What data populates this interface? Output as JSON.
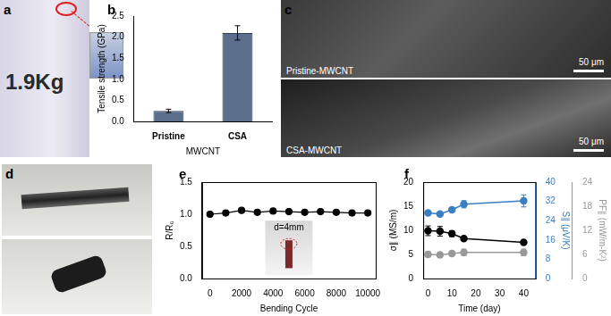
{
  "chart_data": [
    {
      "title": "b",
      "type": "bar",
      "categories": [
        "Pristine",
        "CSA"
      ],
      "values": [
        0.25,
        2.1
      ],
      "errors": [
        0.04,
        0.17
      ],
      "color": "#5b6e8c",
      "x_label": "MWCNT",
      "y_label": "Tensile strength (GPa)",
      "ylim": [
        0,
        2.5
      ],
      "yticks": [
        {
          "value": 0,
          "label": "0.0"
        },
        0.5,
        {
          "value": 1,
          "label": "1.0"
        },
        1.5,
        {
          "value": 2,
          "label": "2.0"
        },
        2.5
      ],
      "grid": false
    },
    {
      "title": "e",
      "type": "line",
      "x": [
        0,
        1000,
        2000,
        3000,
        4000,
        5000,
        6000,
        7000,
        8000,
        9000,
        10000
      ],
      "values": [
        1.0,
        1.02,
        1.06,
        1.03,
        1.05,
        1.04,
        1.03,
        1.04,
        1.03,
        1.02,
        1.02
      ],
      "color": "#000000",
      "marker": "circle",
      "x_label": "Bending Cycle",
      "y_label": "R/R₀",
      "xlim": [
        -500,
        10500
      ],
      "xticks": [
        0,
        2000,
        4000,
        6000,
        8000,
        10000
      ],
      "ylim": [
        0,
        1.5
      ],
      "yticks": [
        {
          "value": 0,
          "label": "0.0"
        },
        0.5,
        {
          "value": 1,
          "label": "1.0"
        },
        1.5
      ],
      "annotations": [
        "d=4mm"
      ],
      "grid": false
    },
    {
      "title": "f",
      "type": "line",
      "x": [
        0,
        5,
        10,
        15,
        40
      ],
      "series": [
        {
          "color": "#000000",
          "marker": "circle",
          "values": [
            9.9,
            9.8,
            9.3,
            8.3,
            7.5
          ],
          "errors": [
            1.0,
            1.0,
            0.6,
            0.3,
            0.3
          ]
        },
        {
          "color": "#3a7fc0",
          "marker": "circle",
          "axis": "y2",
          "values": [
            27.2,
            26.8,
            28.5,
            30.8,
            32.2
          ],
          "errors": [
            0.4,
            0.6,
            0.8,
            1.5,
            2.5
          ]
        },
        {
          "color": "#999999",
          "marker": "circle",
          "axis": "y3",
          "values": [
            6.0,
            5.9,
            6.2,
            6.5,
            6.5
          ],
          "errors": [
            0.6,
            0.6,
            0.6,
            0.8,
            0.8
          ]
        }
      ],
      "x_label": "Time (day)",
      "y_label": "σ∥ (MS/m)",
      "y2_label": "S∥ (μV/K)",
      "y3_label": "PF∥ (mW/m-K²)",
      "xlim": [
        -2,
        45
      ],
      "xticks": [
        0,
        10,
        20,
        30,
        40
      ],
      "ylim": [
        0,
        20
      ],
      "yticks": [
        0,
        5,
        10,
        15,
        20
      ],
      "y2lim": [
        0,
        40
      ],
      "y2ticks": [
        0,
        8,
        16,
        24,
        32,
        40
      ],
      "y3lim": [
        0,
        24
      ],
      "y3ticks": [
        0,
        6,
        12,
        18,
        24
      ],
      "grid": false
    }
  ],
  "images": {
    "a": {
      "label": "a",
      "text": "1.9Kg"
    },
    "c": {
      "label": "c",
      "parts": [
        {
          "label": "Pristine-MWCNT",
          "scale_bar": "50 μm"
        },
        {
          "label": "CSA-MWCNT",
          "scale_bar": "50 μm"
        }
      ]
    },
    "d": {
      "label": "d"
    }
  }
}
